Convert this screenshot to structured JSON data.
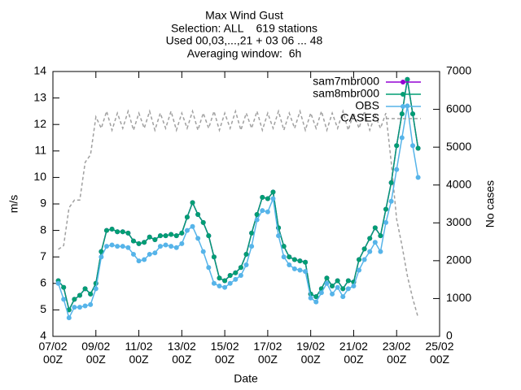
{
  "chart_data": {
    "type": "line",
    "title": [
      "Max Wind Gust",
      "Selection: ALL    619 stations",
      "Used 00,03,...,21 + 03 06 ... 48",
      "Averaging window:  6h"
    ],
    "x_label": "Date",
    "y_label": "m/s",
    "y2_label": "No cases",
    "xlim": [
      "07/02 00Z",
      "25/02 00Z"
    ],
    "xticks": [
      "07/02 00Z",
      "09/02 00Z",
      "11/02 00Z",
      "13/02 00Z",
      "15/02 00Z",
      "17/02 00Z",
      "19/02 00Z",
      "21/02 00Z",
      "23/02 00Z",
      "25/02 00Z"
    ],
    "ylim": [
      4,
      14
    ],
    "yticks": [
      4,
      5,
      6,
      7,
      8,
      9,
      10,
      11,
      12,
      13,
      14
    ],
    "y2lim": [
      0,
      7000
    ],
    "y2ticks": [
      0,
      1000,
      2000,
      3000,
      4000,
      5000,
      6000,
      7000
    ],
    "grid": false,
    "legend": "top-right",
    "x": [
      "07/02 06Z",
      "07/02 12Z",
      "07/02 18Z",
      "08/02 00Z",
      "08/02 06Z",
      "08/02 12Z",
      "08/02 18Z",
      "09/02 00Z",
      "09/02 06Z",
      "09/02 12Z",
      "09/02 18Z",
      "10/02 00Z",
      "10/02 06Z",
      "10/02 12Z",
      "10/02 18Z",
      "11/02 00Z",
      "11/02 06Z",
      "11/02 12Z",
      "11/02 18Z",
      "12/02 00Z",
      "12/02 06Z",
      "12/02 12Z",
      "12/02 18Z",
      "13/02 00Z",
      "13/02 06Z",
      "13/02 12Z",
      "13/02 18Z",
      "14/02 00Z",
      "14/02 06Z",
      "14/02 12Z",
      "14/02 18Z",
      "15/02 00Z",
      "15/02 06Z",
      "15/02 12Z",
      "15/02 18Z",
      "16/02 00Z",
      "16/02 06Z",
      "16/02 12Z",
      "16/02 18Z",
      "17/02 00Z",
      "17/02 06Z",
      "17/02 12Z",
      "17/02 18Z",
      "18/02 00Z",
      "18/02 06Z",
      "18/02 12Z",
      "18/02 18Z",
      "19/02 00Z",
      "19/02 06Z",
      "19/02 12Z",
      "19/02 18Z",
      "20/02 00Z",
      "20/02 06Z",
      "20/02 12Z",
      "20/02 18Z",
      "21/02 00Z",
      "21/02 06Z",
      "21/02 12Z",
      "21/02 18Z",
      "22/02 00Z",
      "22/02 06Z",
      "22/02 12Z",
      "22/02 18Z",
      "23/02 00Z",
      "23/02 06Z",
      "23/02 12Z",
      "23/02 18Z",
      "24/02 00Z"
    ],
    "series": [
      {
        "name": "sam7mbr000",
        "color": "#9400d3",
        "marker": true,
        "dashed": false,
        "values": [
          6.1,
          5.85,
          5.0,
          5.4,
          5.55,
          5.8,
          5.6,
          6.0,
          7.2,
          8.0,
          8.05,
          7.95,
          7.95,
          7.9,
          7.6,
          7.5,
          7.55,
          7.75,
          7.65,
          7.8,
          7.8,
          7.85,
          7.8,
          7.9,
          8.5,
          9.05,
          8.6,
          8.3,
          7.8,
          7.0,
          6.2,
          6.1,
          6.3,
          6.4,
          6.6,
          7.1,
          7.9,
          8.6,
          9.25,
          9.2,
          9.45,
          8.1,
          7.4,
          7.0,
          6.9,
          6.85,
          6.8,
          5.6,
          5.5,
          5.8,
          6.2,
          5.9,
          6.1,
          5.8,
          6.1,
          6.05,
          6.9,
          7.3,
          7.7,
          8.1,
          7.8,
          8.8,
          9.8,
          11.2,
          12.4,
          13.7,
          12.4,
          11.1
        ]
      },
      {
        "name": "sam8mbr000",
        "color": "#009e73",
        "marker": true,
        "dashed": false,
        "values": [
          6.1,
          5.85,
          5.0,
          5.4,
          5.55,
          5.8,
          5.6,
          6.0,
          7.2,
          8.0,
          8.05,
          7.95,
          7.95,
          7.9,
          7.6,
          7.5,
          7.55,
          7.75,
          7.65,
          7.8,
          7.8,
          7.85,
          7.8,
          7.9,
          8.5,
          9.05,
          8.6,
          8.3,
          7.8,
          7.0,
          6.2,
          6.1,
          6.3,
          6.4,
          6.6,
          7.1,
          7.9,
          8.6,
          9.25,
          9.2,
          9.45,
          8.1,
          7.4,
          7.0,
          6.9,
          6.85,
          6.8,
          5.6,
          5.5,
          5.8,
          6.2,
          5.9,
          6.1,
          5.8,
          6.1,
          6.05,
          6.9,
          7.3,
          7.7,
          8.1,
          7.8,
          8.8,
          9.8,
          11.2,
          12.4,
          13.7,
          12.4,
          11.1
        ]
      },
      {
        "name": "OBS",
        "color": "#56b4e9",
        "marker": true,
        "dashed": false,
        "values": [
          6.0,
          5.4,
          4.7,
          5.1,
          5.1,
          5.15,
          5.2,
          5.8,
          7.0,
          7.4,
          7.45,
          7.4,
          7.4,
          7.35,
          7.1,
          6.85,
          6.9,
          7.1,
          7.15,
          7.4,
          7.45,
          7.4,
          7.35,
          7.5,
          8.0,
          8.15,
          7.7,
          7.2,
          6.6,
          6.0,
          5.9,
          5.85,
          6.0,
          6.15,
          6.3,
          6.7,
          7.4,
          8.4,
          8.75,
          8.7,
          9.2,
          7.8,
          7.0,
          6.7,
          6.55,
          6.5,
          6.45,
          5.45,
          5.3,
          5.65,
          6.0,
          5.6,
          5.85,
          5.5,
          5.8,
          5.9,
          6.5,
          6.9,
          7.2,
          7.55,
          7.2,
          8.3,
          9.1,
          10.3,
          11.5,
          12.7,
          11.2,
          10.0
        ]
      },
      {
        "name": "CASES",
        "color": "#a0a0a0",
        "marker": false,
        "dashed": true,
        "axis": "y2",
        "values": [
          2300,
          2400,
          3400,
          3600,
          3600,
          4600,
          4800,
          5800,
          5500,
          5950,
          5450,
          5900,
          5500,
          5950,
          5450,
          5900,
          5500,
          5950,
          5450,
          5900,
          5500,
          5950,
          5450,
          5900,
          5500,
          5950,
          5450,
          5900,
          5500,
          5950,
          5450,
          5900,
          5500,
          5950,
          5450,
          5900,
          5500,
          5950,
          5450,
          5900,
          5500,
          5950,
          5450,
          5900,
          5500,
          5950,
          5450,
          5900,
          5500,
          5950,
          5450,
          5900,
          5500,
          5950,
          5450,
          5900,
          5500,
          5950,
          5450,
          5850,
          5500,
          5900,
          4600,
          3100,
          2400,
          1600,
          1000,
          500
        ]
      }
    ]
  }
}
